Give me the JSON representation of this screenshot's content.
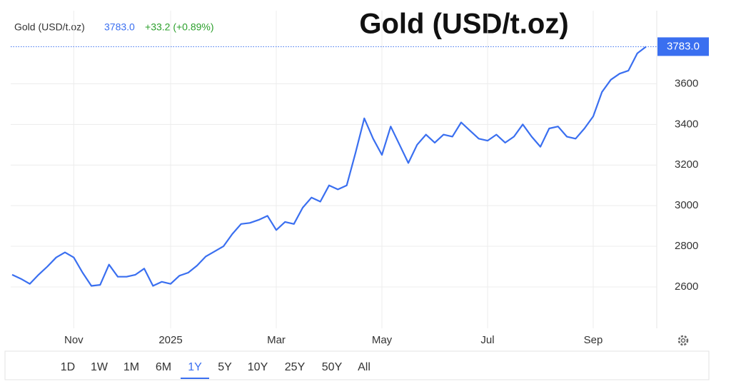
{
  "chart_data": {
    "type": "line",
    "title": "Gold (USD/t.oz)",
    "header": {
      "name": "Gold (USD/t.oz)",
      "price": "3783.0",
      "change": "+33.2 (+0.89%)"
    },
    "categories": [
      null,
      null,
      null,
      null,
      null,
      null,
      null,
      "Nov",
      null,
      null,
      null,
      null,
      null,
      null,
      null,
      null,
      null,
      null,
      "2025",
      null,
      null,
      null,
      null,
      null,
      null,
      null,
      null,
      null,
      null,
      null,
      "Mar",
      null,
      null,
      null,
      null,
      null,
      null,
      null,
      null,
      null,
      null,
      null,
      "May",
      null,
      null,
      null,
      null,
      null,
      null,
      null,
      null,
      null,
      null,
      null,
      "Jul",
      null,
      null,
      null,
      null,
      null,
      null,
      null,
      null,
      null,
      null,
      null,
      "Sep",
      null,
      null,
      null,
      null,
      null,
      null
    ],
    "series": [
      {
        "name": "Gold (USD/t.oz)",
        "color": "#3a6ff0",
        "values": [
          2660,
          2640,
          2615,
          2660,
          2700,
          2745,
          2770,
          2745,
          2670,
          2605,
          2610,
          2710,
          2650,
          2650,
          2660,
          2690,
          2605,
          2625,
          2615,
          2655,
          2670,
          2705,
          2750,
          2775,
          2800,
          2860,
          2910,
          2915,
          2930,
          2950,
          2880,
          2920,
          2910,
          2990,
          3040,
          3020,
          3100,
          3080,
          3100,
          3260,
          3430,
          3330,
          3250,
          3390,
          3300,
          3210,
          3300,
          3350,
          3310,
          3350,
          3340,
          3410,
          3370,
          3330,
          3320,
          3350,
          3310,
          3340,
          3400,
          3340,
          3290,
          3380,
          3390,
          3340,
          3330,
          3380,
          3440,
          3560,
          3620,
          3650,
          3665,
          3750,
          3783
        ]
      }
    ],
    "ylim": [
      2396,
      3960
    ],
    "yticks": [
      2600,
      2800,
      3000,
      3200,
      3400,
      3600
    ],
    "grid": true,
    "ranges": [
      "1D",
      "1W",
      "1M",
      "6M",
      "1Y",
      "5Y",
      "10Y",
      "25Y",
      "50Y",
      "All"
    ],
    "selected_range": 4
  }
}
